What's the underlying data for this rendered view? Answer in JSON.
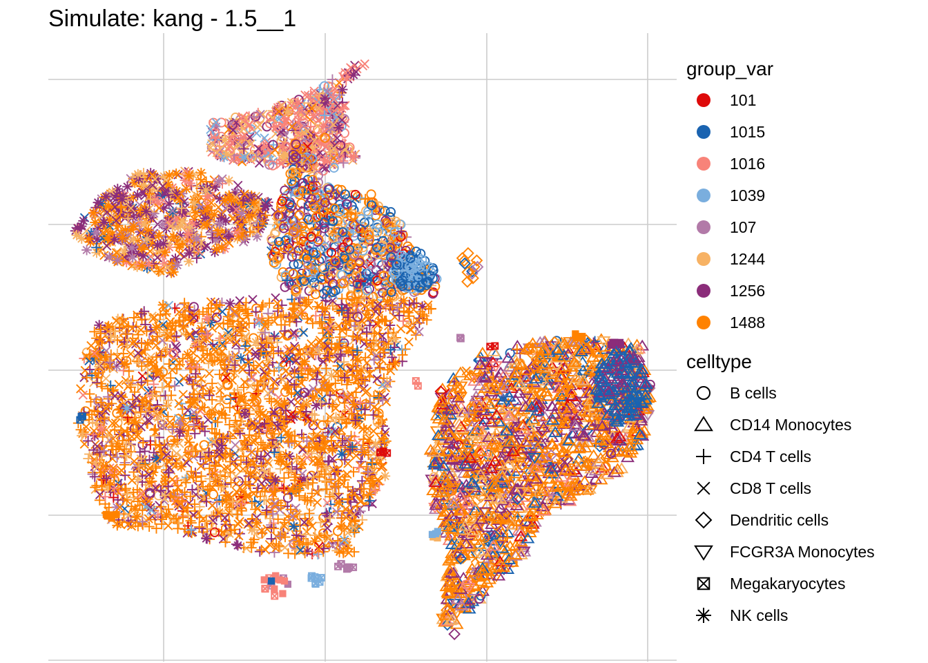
{
  "chart_data": {
    "type": "scatter",
    "title": "Simulate: kang - 1.5__1",
    "xlabel": "",
    "ylabel": "",
    "grid": true,
    "legend_position": "right",
    "color_legend": {
      "title": "group_var",
      "entries": [
        {
          "label": "101",
          "color": "#de0a0a"
        },
        {
          "label": "1015",
          "color": "#1a63b0"
        },
        {
          "label": "1016",
          "color": "#f88379"
        },
        {
          "label": "1039",
          "color": "#7aaede"
        },
        {
          "label": "107",
          "color": "#b27aa8"
        },
        {
          "label": "1244",
          "color": "#f7b264"
        },
        {
          "label": "1256",
          "color": "#8b2d7a"
        },
        {
          "label": "1488",
          "color": "#ff8200"
        }
      ]
    },
    "shape_legend": {
      "title": "celltype",
      "entries": [
        {
          "label": "B cells",
          "shape": "circle"
        },
        {
          "label": "CD14 Monocytes",
          "shape": "triangle-up"
        },
        {
          "label": "CD4 T cells",
          "shape": "plus"
        },
        {
          "label": "CD8 T cells",
          "shape": "cross"
        },
        {
          "label": "Dendritic cells",
          "shape": "diamond"
        },
        {
          "label": "FCGR3A Monocytes",
          "shape": "triangle-down"
        },
        {
          "label": "Megakaryocytes",
          "shape": "square-cross"
        },
        {
          "label": "NK cells",
          "shape": "asterisk"
        }
      ]
    }
  }
}
